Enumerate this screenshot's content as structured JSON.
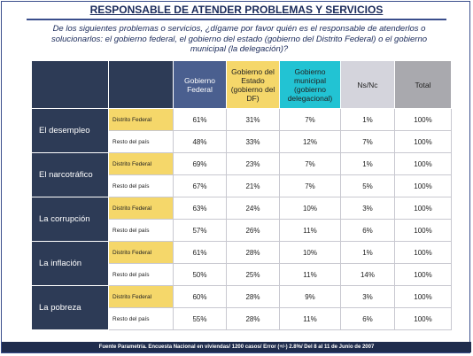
{
  "header": {
    "title": "RESPONSABLE DE ATENDER PROBLEMAS Y SERVICIOS",
    "question": "De los siguientes problemas o servicios, ¿dígame por favor quién es el responsable de atenderlos o solucionarlos: el gobierno federal, el gobierno del estado (gobierno del Distrito Federal) o el gobierno municipal (la delegación)?"
  },
  "table": {
    "columns": [
      "Gobierno Federal",
      "Gobierno del Estado (gobierno del DF)",
      "Gobierno municipal (gobierno delegacional)",
      "Ns/Nc",
      "Total"
    ],
    "groups": [
      {
        "label": "El desempleo",
        "rows": [
          {
            "label": "Distrito Federal",
            "cells": [
              "61%",
              "31%",
              "7%",
              "1%",
              "100%"
            ]
          },
          {
            "label": "Resto del país",
            "cells": [
              "48%",
              "33%",
              "12%",
              "7%",
              "100%"
            ]
          }
        ]
      },
      {
        "label": "El narcotráfico",
        "rows": [
          {
            "label": "Distrito Federal",
            "cells": [
              "69%",
              "23%",
              "7%",
              "1%",
              "100%"
            ]
          },
          {
            "label": "Resto del país",
            "cells": [
              "67%",
              "21%",
              "7%",
              "5%",
              "100%"
            ]
          }
        ]
      },
      {
        "label": "La corrupción",
        "rows": [
          {
            "label": "Distrito Federal",
            "cells": [
              "63%",
              "24%",
              "10%",
              "3%",
              "100%"
            ]
          },
          {
            "label": "Resto del país",
            "cells": [
              "57%",
              "26%",
              "11%",
              "6%",
              "100%"
            ]
          }
        ]
      },
      {
        "label": "La inflación",
        "rows": [
          {
            "label": "Distrito Federal",
            "cells": [
              "61%",
              "28%",
              "10%",
              "1%",
              "100%"
            ]
          },
          {
            "label": "Resto del país",
            "cells": [
              "50%",
              "25%",
              "11%",
              "14%",
              "100%"
            ]
          }
        ]
      },
      {
        "label": "La pobreza",
        "rows": [
          {
            "label": "Distrito Federal",
            "cells": [
              "60%",
              "28%",
              "9%",
              "3%",
              "100%"
            ]
          },
          {
            "label": "Resto del país",
            "cells": [
              "55%",
              "28%",
              "11%",
              "6%",
              "100%"
            ]
          }
        ]
      }
    ]
  },
  "footer": "Fuente Parametría. Encuesta Nacional en viviendas/ 1200 casos/ Error (+/-) 2.8%/ Del 8 al 11 de Junio de 2007"
}
